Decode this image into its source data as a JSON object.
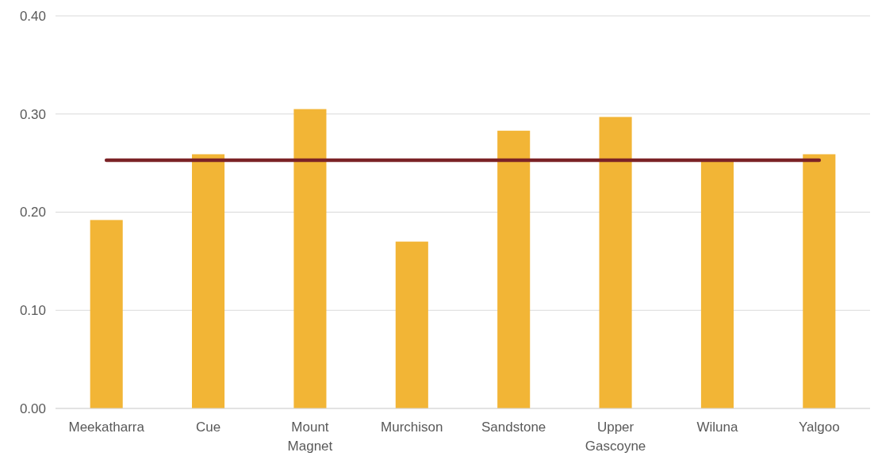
{
  "chart_data": {
    "type": "bar",
    "categories": [
      "Meekatharra",
      "Cue",
      "Mount Magnet",
      "Murchison",
      "Sandstone",
      "Upper Gascoyne",
      "Wiluna",
      "Yalgoo"
    ],
    "series": [
      {
        "color": "#f2b536",
        "values": [
          0.192,
          0.259,
          0.305,
          0.17,
          0.283,
          0.297,
          0.252,
          0.259
        ]
      },
      {
        "type": "line",
        "color": "#7b2226",
        "values": [
          0.253,
          0.253,
          0.253,
          0.253,
          0.253,
          0.253,
          0.253,
          0.253
        ]
      }
    ],
    "ylim": [
      0,
      0.4
    ],
    "yticks": [
      {
        "value": 0,
        "label": "0.00"
      },
      {
        "value": 0.1,
        "label": "0.10"
      },
      {
        "value": 0.2,
        "label": "0.20"
      },
      {
        "value": 0.3,
        "label": "0.30"
      },
      {
        "value": 0.4,
        "label": "0.40"
      }
    ],
    "grid": "y"
  }
}
